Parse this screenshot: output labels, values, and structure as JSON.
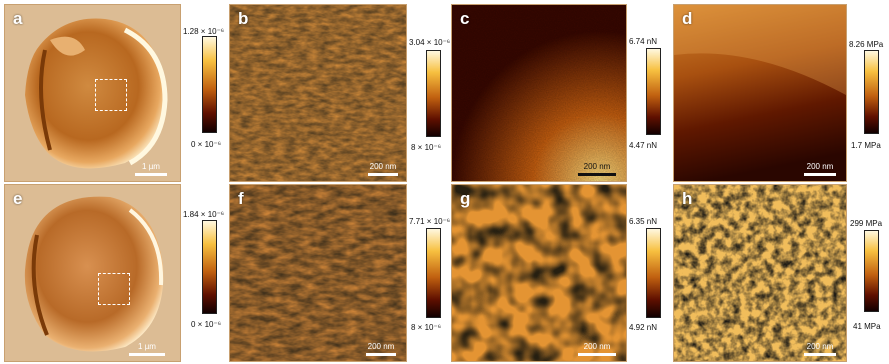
{
  "colors": {
    "afm_dark": "#1a0600",
    "afm_mid": "#b85a10",
    "afm_light": "#fff0c0",
    "background": "#ffffff"
  },
  "panels": [
    {
      "letter": "a",
      "scale": "1 µm",
      "cbar_top": "1.28 × 10⁻⁶",
      "cbar_bottom": "0 × 10⁻⁶"
    },
    {
      "letter": "b",
      "scale": "200 nm",
      "cbar_top": "3.04 × 10⁻⁶",
      "cbar_bottom": "8 × 10⁻⁶"
    },
    {
      "letter": "c",
      "scale": "200 nm",
      "cbar_top": "6.74 nN",
      "cbar_bottom": "4.47 nN"
    },
    {
      "letter": "d",
      "scale": "200 nm",
      "cbar_top": "8.26 MPa",
      "cbar_bottom": "1.7 MPa"
    },
    {
      "letter": "e",
      "scale": "1 µm",
      "cbar_top": "1.84 × 10⁻⁶",
      "cbar_bottom": "0 × 10⁻⁶"
    },
    {
      "letter": "f",
      "scale": "200 nm",
      "cbar_top": "7.71 × 10⁻⁶",
      "cbar_bottom": "8 × 10⁻⁶"
    },
    {
      "letter": "g",
      "scale": "200 nm",
      "cbar_top": "6.35 nN",
      "cbar_bottom": "4.92 nN"
    },
    {
      "letter": "h",
      "scale": "200 nm",
      "cbar_top": "299 MPa",
      "cbar_bottom": "41 MPa"
    }
  ]
}
